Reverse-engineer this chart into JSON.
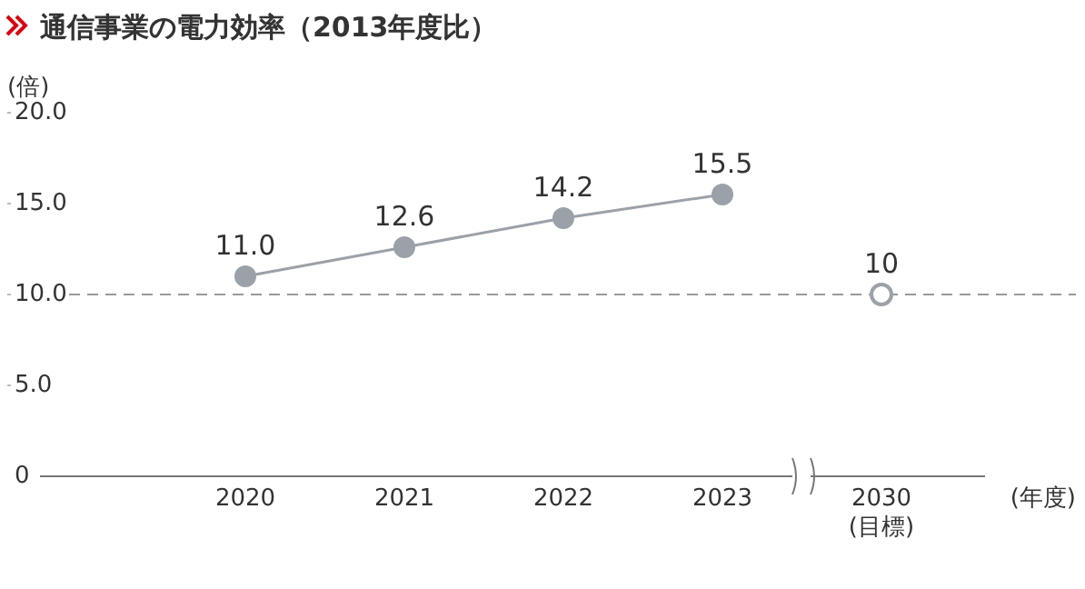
{
  "chart_data": {
    "type": "line",
    "title": "通信事業の電力効率（2013年度比）",
    "ylabel": "(倍)",
    "xlabel": "(年度)",
    "categories": [
      "2020",
      "2021",
      "2022",
      "2023",
      "2030\n(目標)"
    ],
    "ylim": [
      0,
      20
    ],
    "yticks": [
      0,
      {
        "value": 5,
        "label": "5.0"
      },
      {
        "value": 10,
        "label": "10.0"
      },
      {
        "value": 15,
        "label": "15.0"
      },
      {
        "value": 20,
        "label": "20.0"
      }
    ],
    "marker": "circle",
    "line_style": "solid",
    "series": [
      {
        "color": "#9ba1a8",
        "values": [
          11.0,
          12.6,
          14.2,
          15.5,
          null
        ],
        "value_labels": [
          "11.0",
          "12.6",
          "14.2",
          "15.5",
          null
        ]
      },
      {
        "type": "scatter",
        "color": "#9ba1a8",
        "values": [
          null,
          null,
          null,
          null,
          10
        ],
        "value_labels": [
          null,
          null,
          null,
          null,
          "10"
        ]
      }
    ],
    "ref_lines": [
      {
        "axis": "y",
        "value": 10,
        "color": "#9a9a9a",
        "line_style": "dashed"
      }
    ]
  }
}
